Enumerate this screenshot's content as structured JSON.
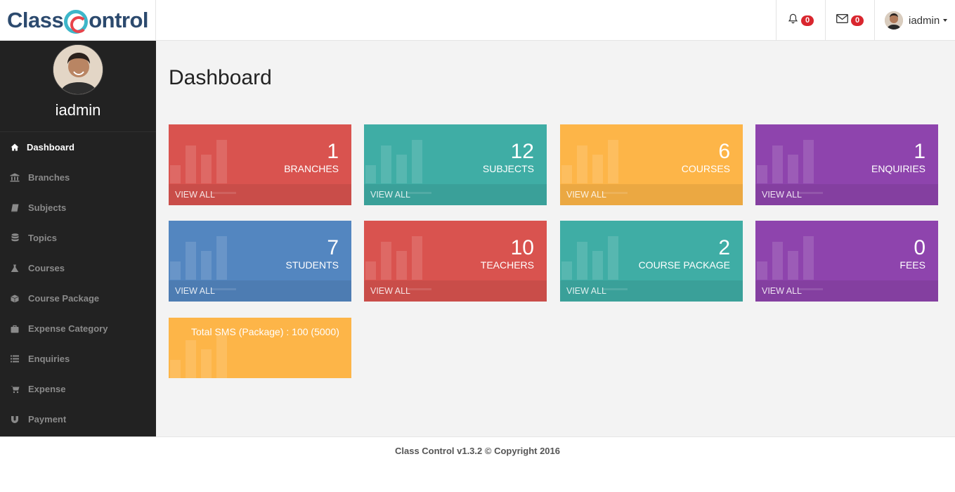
{
  "app": {
    "logo_left": "Class",
    "logo_right": "ontrol"
  },
  "header": {
    "notifications_count": "0",
    "messages_count": "0",
    "username": "iadmin"
  },
  "sidebar": {
    "profile_name": "iadmin",
    "items": [
      {
        "label": "Dashboard",
        "icon": "home-icon",
        "active": true
      },
      {
        "label": "Branches",
        "icon": "bank-icon"
      },
      {
        "label": "Subjects",
        "icon": "book-icon"
      },
      {
        "label": "Topics",
        "icon": "database-icon"
      },
      {
        "label": "Courses",
        "icon": "flask-icon"
      },
      {
        "label": "Course Package",
        "icon": "cube-icon"
      },
      {
        "label": "Expense Category",
        "icon": "briefcase-icon"
      },
      {
        "label": "Enquiries",
        "icon": "list-icon"
      },
      {
        "label": "Expense",
        "icon": "cart-icon"
      },
      {
        "label": "Payment",
        "icon": "magnet-icon"
      }
    ]
  },
  "main": {
    "title": "Dashboard",
    "tiles": [
      {
        "value": "1",
        "label": "BRANCHES",
        "link": "VIEW ALL",
        "color": "#d9534f"
      },
      {
        "value": "12",
        "label": "SUBJECTS",
        "link": "VIEW ALL",
        "color": "#3fada5"
      },
      {
        "value": "6",
        "label": "COURSES",
        "link": "VIEW ALL",
        "color": "#fdb548"
      },
      {
        "value": "1",
        "label": "ENQUIRIES",
        "link": "VIEW ALL",
        "color": "#8e44ad"
      },
      {
        "value": "7",
        "label": "STUDENTS",
        "link": "VIEW ALL",
        "color": "#5386c0"
      },
      {
        "value": "10",
        "label": "TEACHERS",
        "link": "VIEW ALL",
        "color": "#d9534f"
      },
      {
        "value": "2",
        "label": "COURSE PACKAGE",
        "link": "VIEW ALL",
        "color": "#3fada5"
      },
      {
        "value": "0",
        "label": "FEES",
        "link": "VIEW ALL",
        "color": "#8e44ad"
      }
    ],
    "sms_text": "Total SMS (Package) : 100 (5000)"
  },
  "footer": {
    "version": "Class Control v1.3.2",
    "copyright": "© Copyright 2016"
  }
}
